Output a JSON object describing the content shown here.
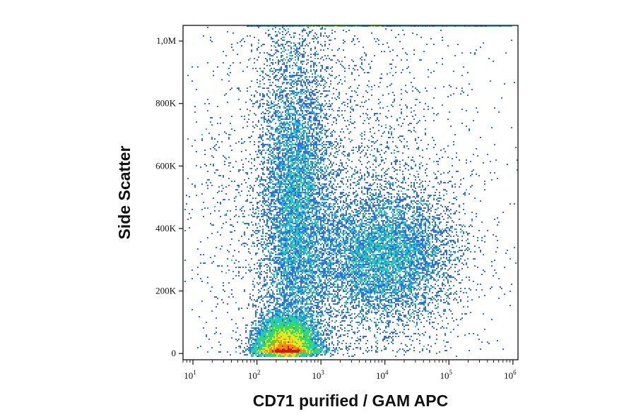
{
  "chart_data": {
    "type": "scatter",
    "title": "",
    "xlabel": "CD71 purified / GAM APC",
    "ylabel": "Side Scatter",
    "x_scale": "log",
    "xlim": [
      7,
      1200000
    ],
    "ylim": [
      -20000,
      1050000
    ],
    "x_ticks": [
      {
        "base": "10",
        "exp": "1",
        "value": 10
      },
      {
        "base": "10",
        "exp": "2",
        "value": 100
      },
      {
        "base": "10",
        "exp": "3",
        "value": 1000
      },
      {
        "base": "10",
        "exp": "4",
        "value": 10000
      },
      {
        "base": "10",
        "exp": "5",
        "value": 100000
      },
      {
        "base": "10",
        "exp": "6",
        "value": 1000000
      }
    ],
    "y_ticks": [
      {
        "label": "0",
        "value": 0
      },
      {
        "label": "200K",
        "value": 200000
      },
      {
        "label": "400K",
        "value": 400000
      },
      {
        "label": "600K",
        "value": 600000
      },
      {
        "label": "800K",
        "value": 800000
      },
      {
        "label": "1,0M",
        "value": 1000000
      }
    ],
    "grid": false,
    "legend": "none",
    "density_colormap": [
      "#1010c8",
      "#2f6cf0",
      "#22c8c8",
      "#33dd55",
      "#e8e820",
      "#ff8a00",
      "#e01010"
    ],
    "populations": [
      {
        "x_center_log10": 2.45,
        "x_spread_log10": 0.22,
        "y_center": 25000,
        "y_spread": 45000,
        "weight": 0.3
      },
      {
        "x_center_log10": 2.6,
        "x_spread_log10": 0.28,
        "y_center": 450000,
        "y_spread": 300000,
        "weight": 0.3
      },
      {
        "x_center_log10": 4.0,
        "x_spread_log10": 0.55,
        "y_center": 310000,
        "y_spread": 110000,
        "weight": 0.25
      },
      {
        "x_center_log10": 3.2,
        "x_spread_log10": 1.2,
        "y_center": 500000,
        "y_spread": 300000,
        "weight": 0.15
      }
    ],
    "saturation_row": {
      "y": 1050000,
      "x_range": [
        70,
        1000000
      ]
    }
  }
}
